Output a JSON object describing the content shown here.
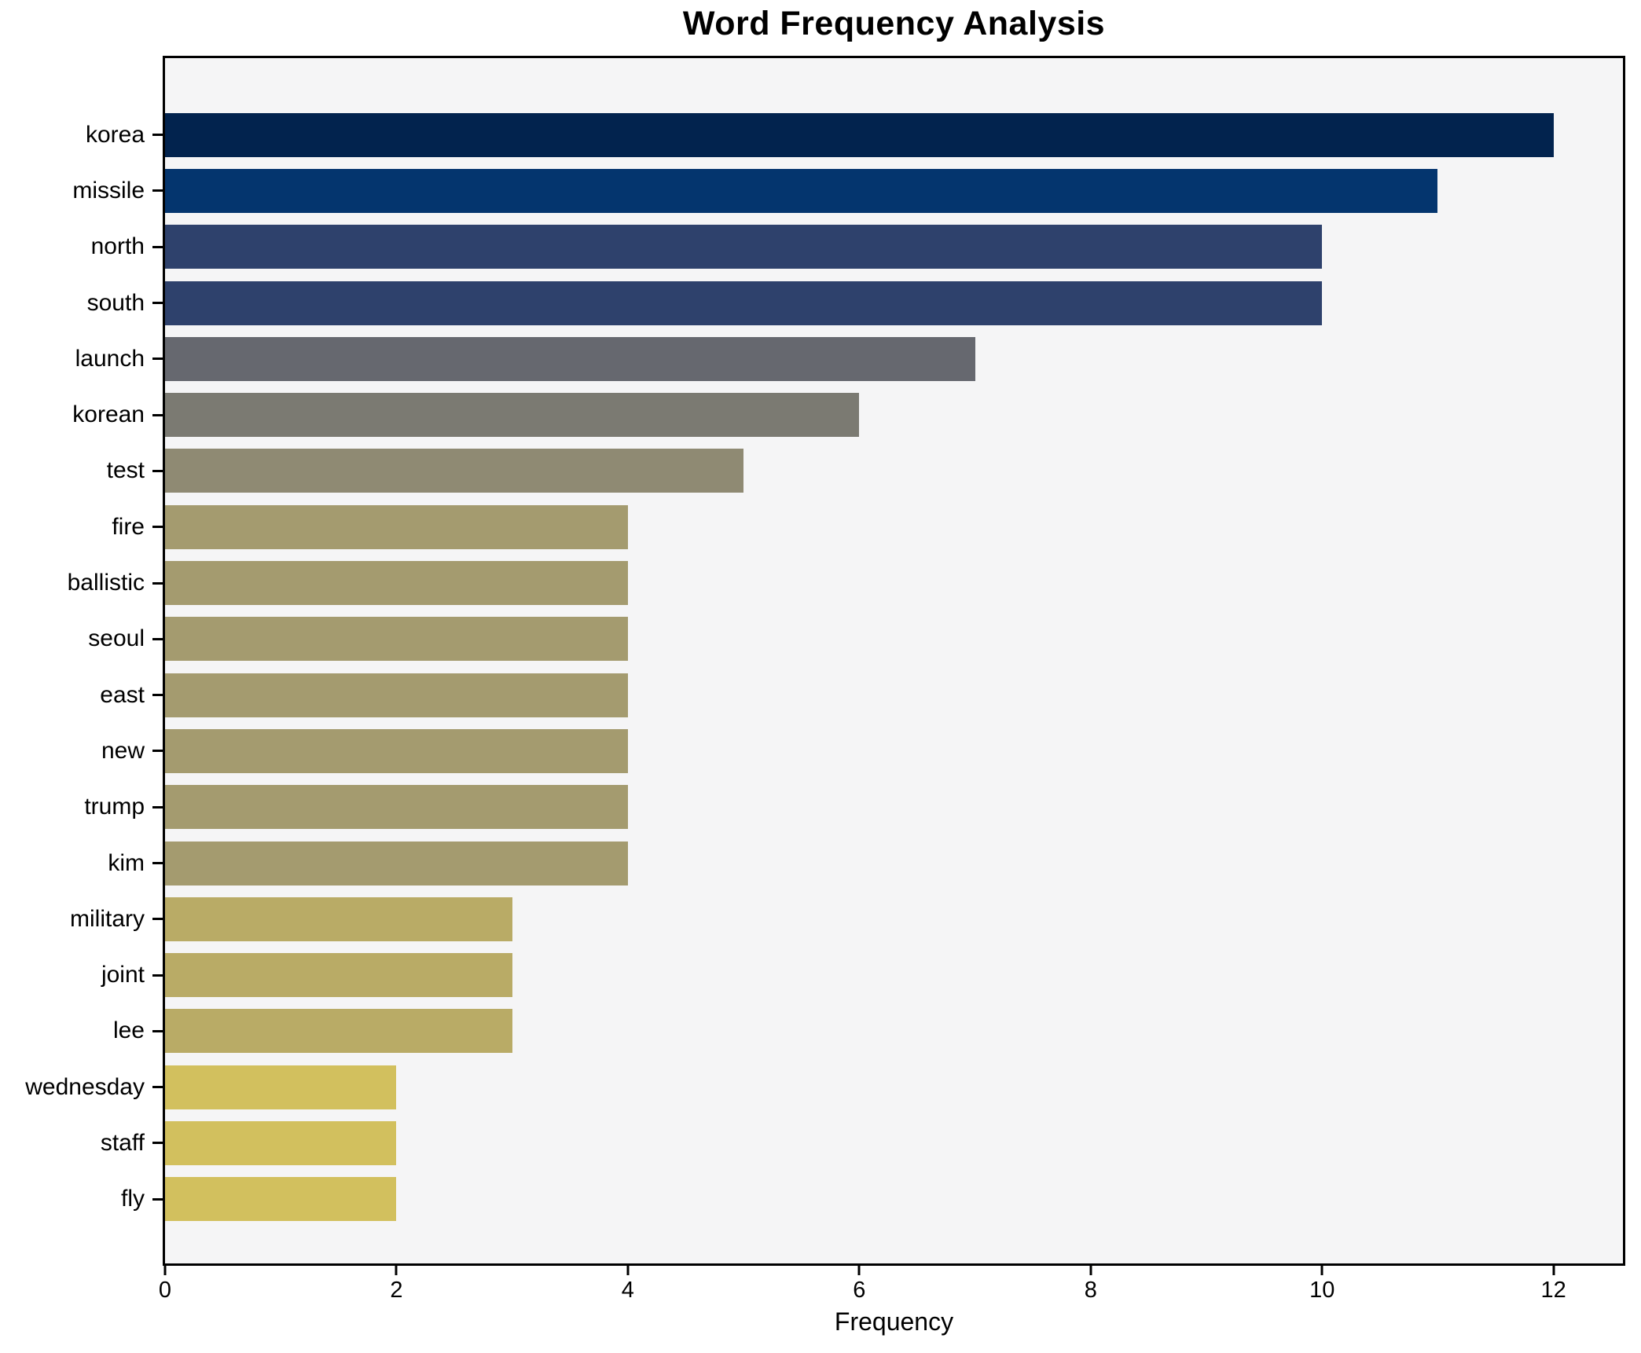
{
  "chart_data": {
    "type": "bar",
    "orientation": "horizontal",
    "title": "Word Frequency Analysis",
    "xlabel": "Frequency",
    "ylabel": "",
    "categories": [
      "korea",
      "missile",
      "north",
      "south",
      "launch",
      "korean",
      "test",
      "fire",
      "ballistic",
      "seoul",
      "east",
      "new",
      "trump",
      "kim",
      "military",
      "joint",
      "lee",
      "wednesday",
      "staff",
      "fly"
    ],
    "values": [
      12,
      11,
      10,
      10,
      7,
      6,
      5,
      4,
      4,
      4,
      4,
      4,
      4,
      4,
      3,
      3,
      3,
      2,
      2,
      2
    ],
    "bar_colors": [
      "#02234e",
      "#04356e",
      "#2e416c",
      "#2e416c",
      "#66686f",
      "#7b7a72",
      "#8f8a73",
      "#a49b6f",
      "#a49b6f",
      "#a49b6f",
      "#a49b6f",
      "#a49b6f",
      "#a49b6f",
      "#a49b6f",
      "#b9ab66",
      "#b9ab66",
      "#b9ab66",
      "#d2c05e",
      "#d2c05e",
      "#d2c05e"
    ],
    "xlim": [
      0,
      12.6
    ],
    "xticks": [
      0,
      2,
      4,
      6,
      8,
      10,
      12
    ],
    "grid": false,
    "legend": null,
    "plot_background": "#f5f5f6",
    "axis_color": "#000000"
  }
}
